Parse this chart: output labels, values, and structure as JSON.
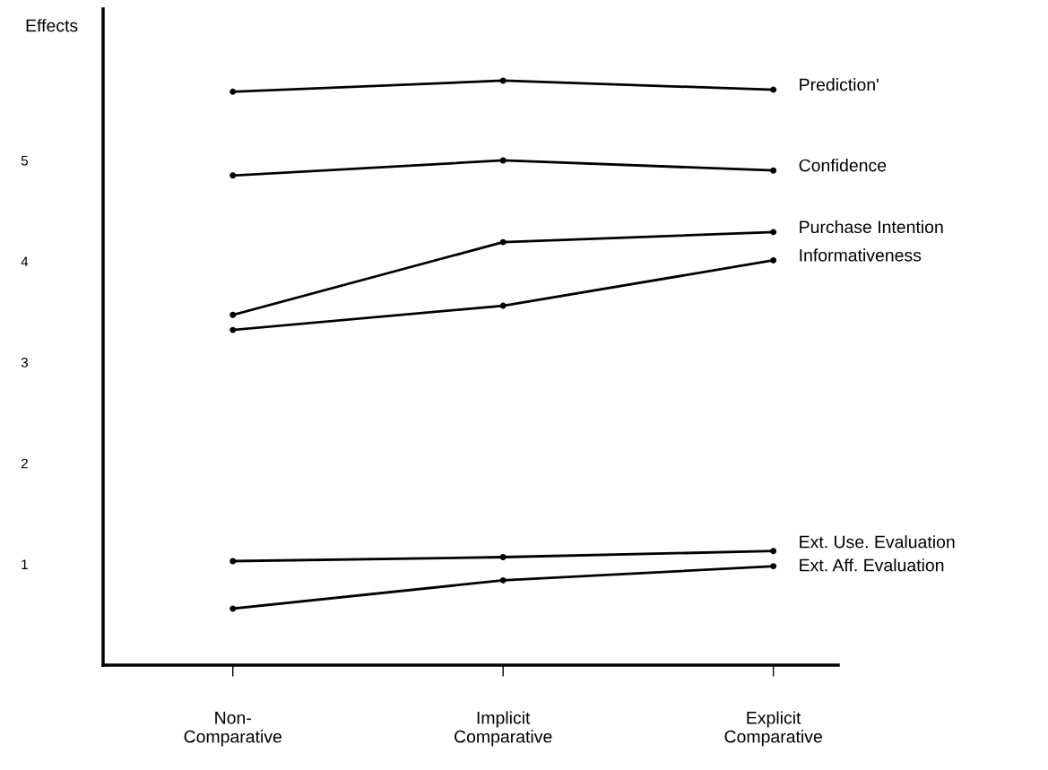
{
  "chart_data": {
    "type": "line",
    "ylabel": "Effects",
    "categories": [
      "Non-\nComparative",
      "Implicit\nComparative",
      "Explicit\nComparative"
    ],
    "series": [
      {
        "name": "Prediction'",
        "color": "#000000",
        "values": [
          5.68,
          5.79,
          5.7
        ]
      },
      {
        "name": "Confidence",
        "color": "#000000",
        "values": [
          4.85,
          5.0,
          4.9
        ]
      },
      {
        "name": "Purchase Intention",
        "color": "#000000",
        "values": [
          3.47,
          4.19,
          4.29
        ]
      },
      {
        "name": "Informativeness",
        "color": "#000000",
        "values": [
          3.32,
          3.56,
          4.01
        ]
      },
      {
        "name": "Ext. Use. Evaluation",
        "color": "#000000",
        "values": [
          1.03,
          1.07,
          1.13
        ]
      },
      {
        "name": "Ext. Aff. Evaluation",
        "color": "#000000",
        "values": [
          0.56,
          0.84,
          0.98
        ]
      }
    ],
    "ylim": [
      0,
      6.5
    ],
    "yticks": [
      1,
      2,
      3,
      4,
      5
    ],
    "grid": false,
    "legend": false,
    "marker": "circle",
    "line_style": "solid"
  }
}
